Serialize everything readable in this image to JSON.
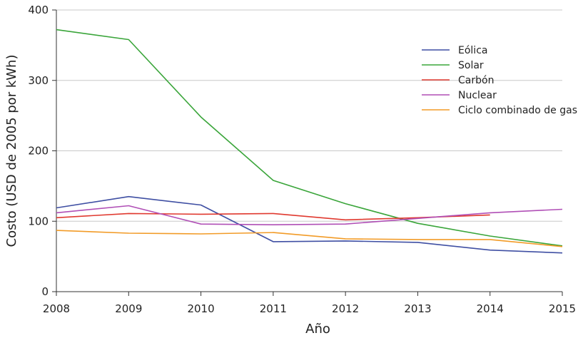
{
  "chart_data": {
    "type": "line",
    "title": "",
    "xlabel": "Año",
    "ylabel": "Costo (USD de 2005 por kWh)",
    "xlim": [
      2008,
      2015
    ],
    "ylim": [
      0,
      400
    ],
    "x_ticks": [
      "2008",
      "2009",
      "2010",
      "2011",
      "2012",
      "2013",
      "2014",
      "2015"
    ],
    "y_ticks": [
      "0",
      "100",
      "200",
      "300",
      "400"
    ],
    "grid": "horizontal",
    "legend_position": "top-right",
    "series": [
      {
        "name": "Eólica",
        "color": "#3f4fa3",
        "points": [
          [
            2008,
            119
          ],
          [
            2009,
            135
          ],
          [
            2010,
            123
          ],
          [
            2011,
            71
          ],
          [
            2012,
            72
          ],
          [
            2013,
            70
          ],
          [
            2014,
            59
          ],
          [
            2015,
            55
          ]
        ]
      },
      {
        "name": "Solar",
        "color": "#3aa53a",
        "points": [
          [
            2008,
            372
          ],
          [
            2009,
            358
          ],
          [
            2010,
            248
          ],
          [
            2011,
            158
          ],
          [
            2012,
            125
          ],
          [
            2013,
            97
          ],
          [
            2014,
            79
          ],
          [
            2015,
            65
          ]
        ]
      },
      {
        "name": "Carbón",
        "color": "#e0392f",
        "points": [
          [
            2008,
            105
          ],
          [
            2009,
            111
          ],
          [
            2010,
            110
          ],
          [
            2011,
            111
          ],
          [
            2012,
            102
          ],
          [
            2013,
            105
          ],
          [
            2014,
            109
          ]
        ]
      },
      {
        "name": "Nuclear",
        "color": "#b04fb6",
        "points": [
          [
            2008,
            112
          ],
          [
            2009,
            122
          ],
          [
            2010,
            96
          ],
          [
            2011,
            95
          ],
          [
            2012,
            96
          ],
          [
            2013,
            104
          ],
          [
            2014,
            112
          ],
          [
            2015,
            117
          ]
        ]
      },
      {
        "name": "Ciclo combinado de gas",
        "color": "#f29b27",
        "points": [
          [
            2008,
            87
          ],
          [
            2009,
            83
          ],
          [
            2010,
            82
          ],
          [
            2011,
            84
          ],
          [
            2012,
            75
          ],
          [
            2013,
            74
          ],
          [
            2014,
            74
          ],
          [
            2015,
            64
          ]
        ]
      }
    ]
  }
}
